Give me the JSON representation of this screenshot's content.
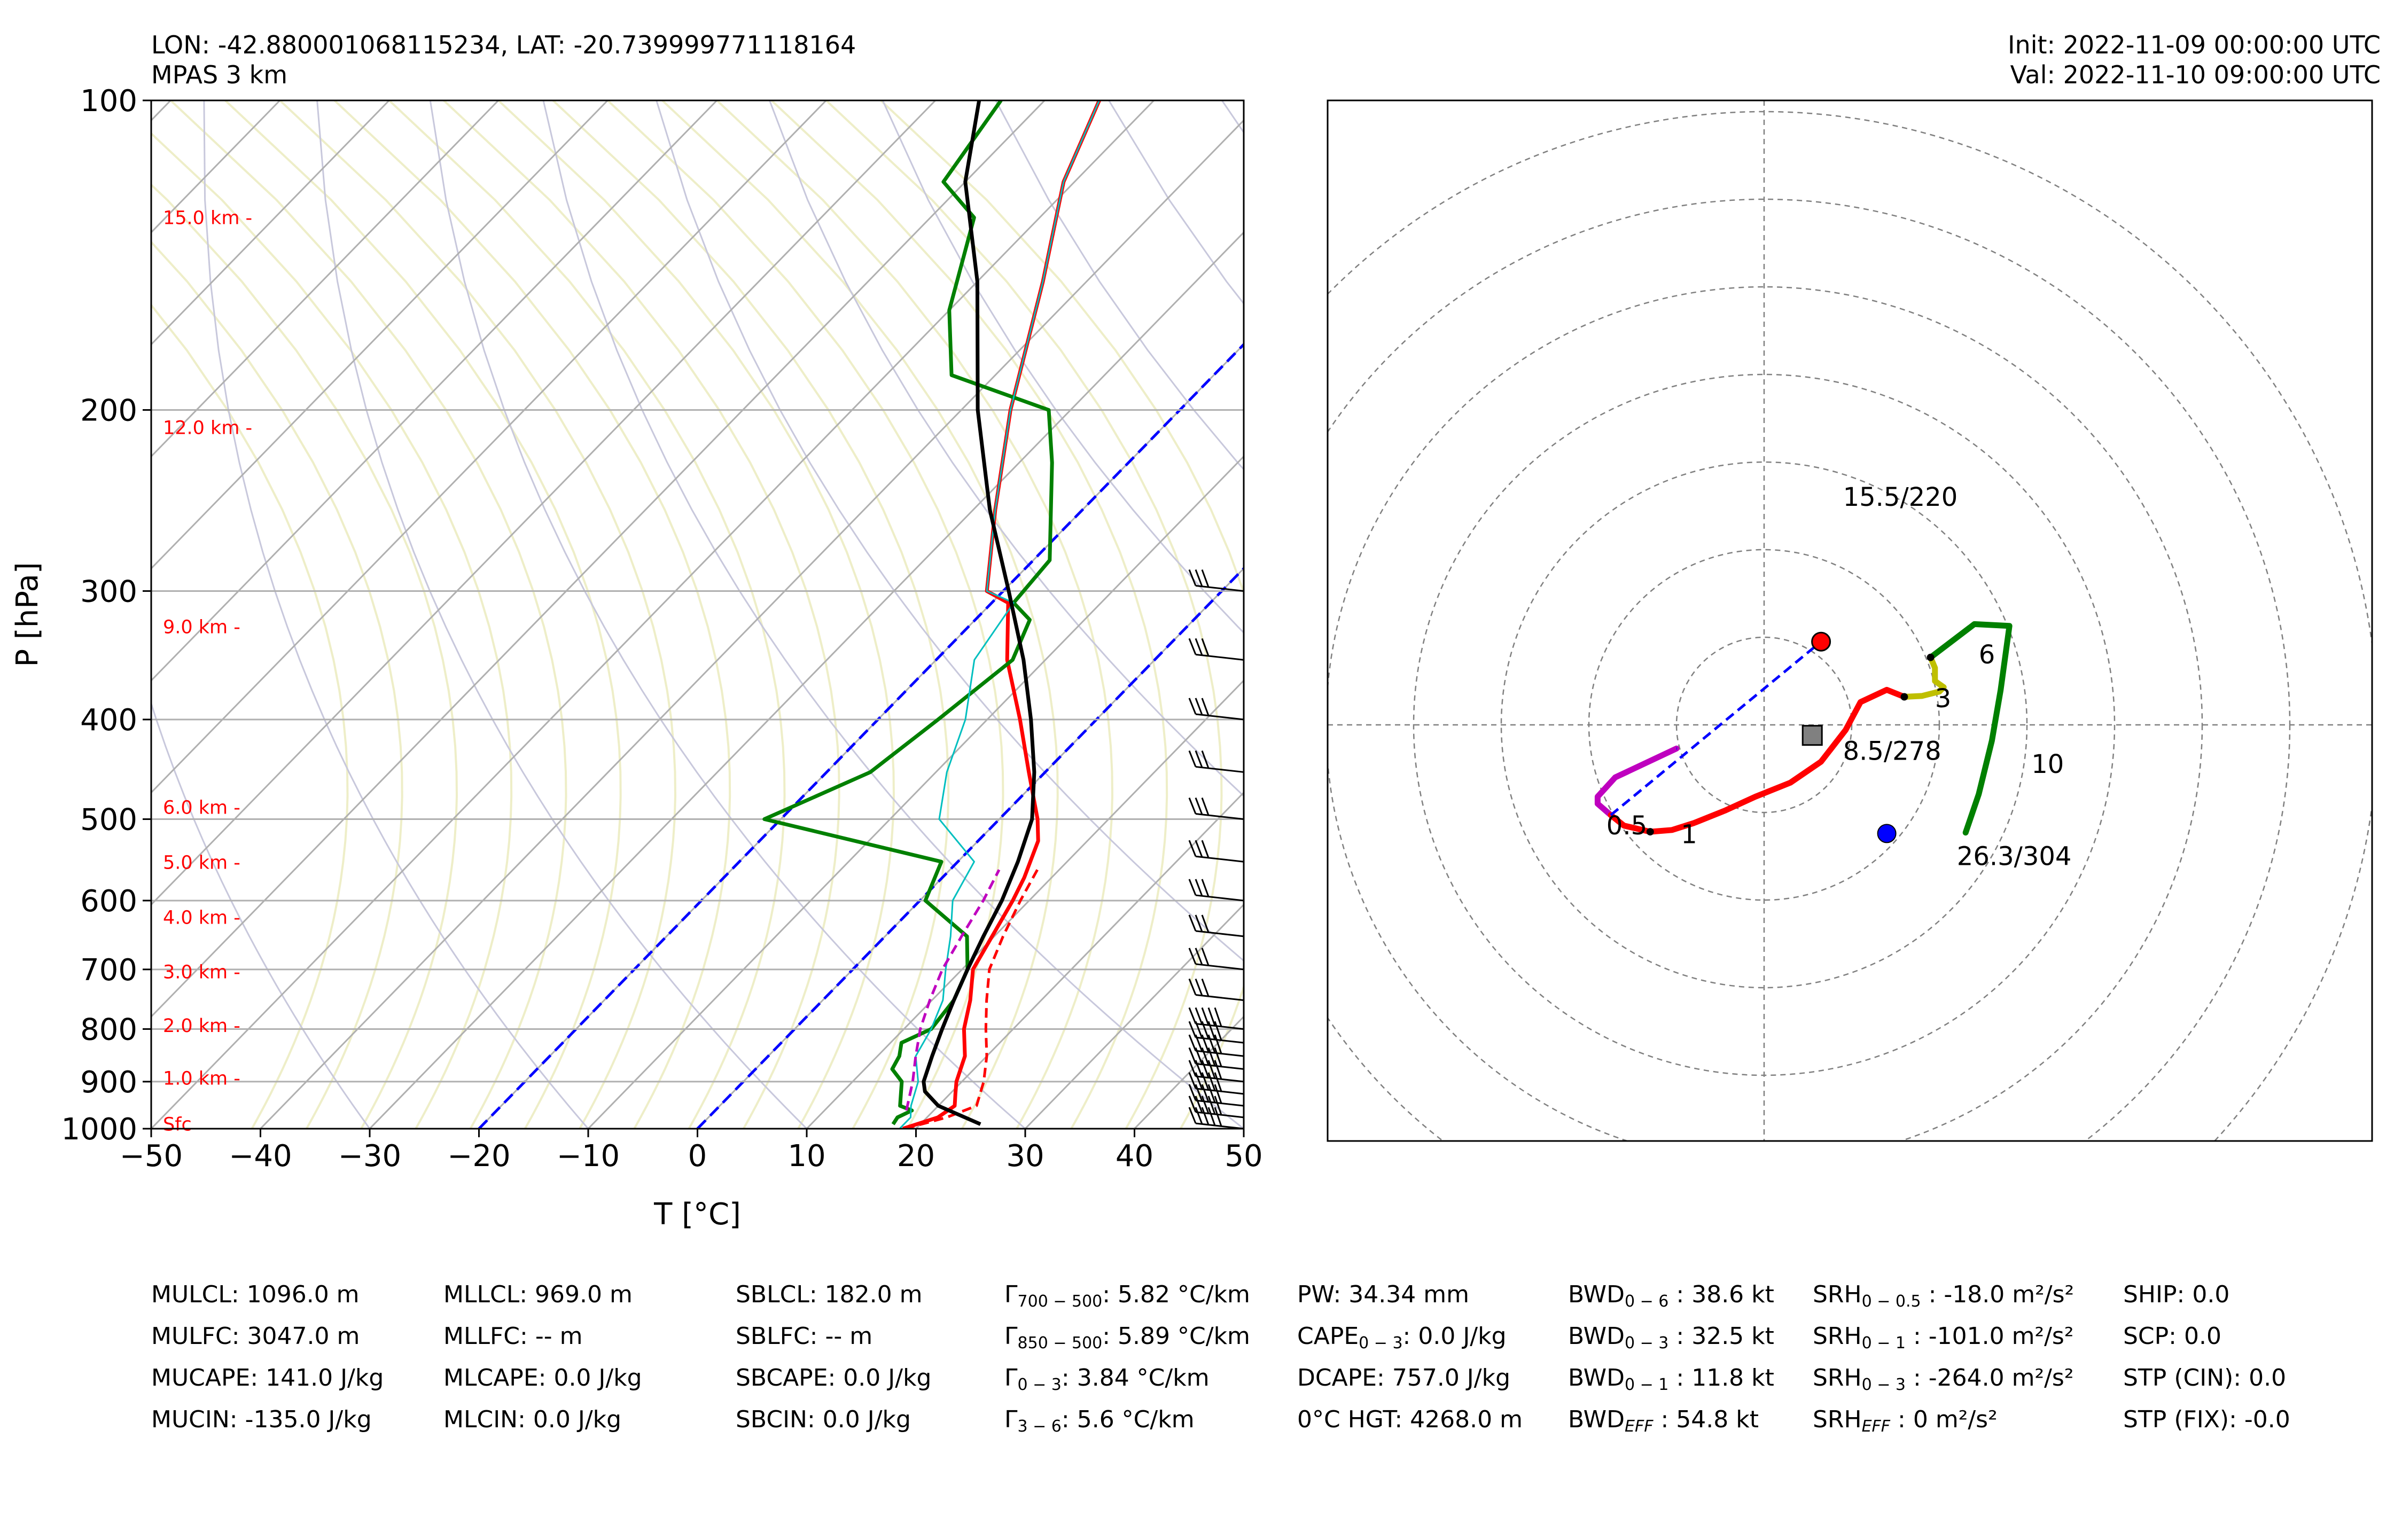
{
  "header": {
    "location": "LON: -42.880001068115234, LAT: -20.739999771118164",
    "model": "MPAS 3 km",
    "init": "Init: 2022-11-09 00:00:00 UTC",
    "valid": "Val: 2022-11-10 09:00:00 UTC"
  },
  "chart_data": [
    {
      "type": "skewt",
      "xlabel": "T [°C]",
      "ylabel": "P [hPa]",
      "xlim": [
        -50,
        50
      ],
      "ylim": [
        1000,
        100
      ],
      "x_ticks": [
        -50,
        -40,
        -30,
        -20,
        -10,
        0,
        10,
        20,
        30,
        40,
        50
      ],
      "x_tick_labels": [
        "−50",
        "−40",
        "−30",
        "−20",
        "−10",
        "0",
        "10",
        "20",
        "30",
        "40",
        "50"
      ],
      "p_ticks": [
        1000,
        900,
        800,
        700,
        600,
        500,
        400,
        300,
        200,
        100
      ],
      "height_labels": [
        {
          "label": "Sfc",
          "p": 990
        },
        {
          "label": "1.0 km -",
          "p": 893
        },
        {
          "label": "2.0 km -",
          "p": 794
        },
        {
          "label": "3.0 km -",
          "p": 704
        },
        {
          "label": "4.0 km -",
          "p": 623
        },
        {
          "label": "5.0 km -",
          "p": 551
        },
        {
          "label": "6.0 km -",
          "p": 487
        },
        {
          "label": "9.0 km -",
          "p": 325
        },
        {
          "label": "12.0 km -",
          "p": 208
        },
        {
          "label": "15.0 km -",
          "p": 130
        }
      ],
      "colors": {
        "temperature": "#ff0000",
        "dewpoint": "#008000",
        "parcel": "#000000",
        "wetbulb": "#00bfbf",
        "virtual_temp": "#ff0000",
        "dgz_parcel": "#bf00bf",
        "isotherm_0": "#0000ff",
        "dry_adiabat": "#c8c8dc",
        "moist_adiabat": "#eeeec8"
      },
      "series": [
        {
          "key": "temperature",
          "points": [
            [
              18.8,
              1000
            ],
            [
              21.0,
              975
            ],
            [
              21.5,
              950
            ],
            [
              20.5,
              925
            ],
            [
              19.5,
              900
            ],
            [
              18.0,
              850
            ],
            [
              15.5,
              800
            ],
            [
              13.5,
              750
            ],
            [
              11.0,
              700
            ],
            [
              9.8,
              650
            ],
            [
              8.5,
              600
            ],
            [
              7.5,
              570
            ],
            [
              5.5,
              525
            ],
            [
              3.5,
              500
            ],
            [
              -1.5,
              450
            ],
            [
              -7.0,
              400
            ],
            [
              -13.5,
              350
            ],
            [
              -18.5,
              308
            ],
            [
              -21.5,
              300
            ],
            [
              -28.0,
              250
            ],
            [
              -35.5,
              200
            ],
            [
              -44.0,
              150
            ],
            [
              -51.0,
              120
            ],
            [
              -55.0,
              100
            ]
          ]
        },
        {
          "key": "virtual_temp",
          "points": [
            [
              19.0,
              1000
            ],
            [
              21.8,
              975
            ],
            [
              23.5,
              950
            ],
            [
              22.0,
              900
            ],
            [
              20.0,
              850
            ],
            [
              17.5,
              800
            ],
            [
              15.0,
              750
            ],
            [
              12.5,
              700
            ],
            [
              10.8,
              650
            ],
            [
              9.2,
              600
            ],
            [
              8.0,
              560
            ]
          ]
        },
        {
          "key": "dewpoint",
          "points": [
            [
              17.5,
              990
            ],
            [
              17.3,
              975
            ],
            [
              18.0,
              960
            ],
            [
              16.5,
              950
            ],
            [
              14.5,
              900
            ],
            [
              12.5,
              875
            ],
            [
              12.0,
              850
            ],
            [
              11.0,
              825
            ],
            [
              12.5,
              800
            ],
            [
              12.0,
              750
            ],
            [
              10.5,
              700
            ],
            [
              7.5,
              650
            ],
            [
              0.5,
              600
            ],
            [
              -1.5,
              550
            ],
            [
              -21.5,
              500
            ],
            [
              -16.0,
              450
            ],
            [
              -14.5,
              400
            ],
            [
              -13.0,
              350
            ],
            [
              -15.0,
              320
            ],
            [
              -18.0,
              308
            ],
            [
              -18.5,
              280
            ],
            [
              -27.0,
              225
            ],
            [
              -32.0,
              200
            ],
            [
              -44.0,
              185
            ],
            [
              -50.0,
              160
            ],
            [
              -56.0,
              130
            ],
            [
              -62.0,
              120
            ],
            [
              -64.0,
              100
            ]
          ]
        },
        {
          "key": "wetbulb",
          "points": [
            [
              18.5,
              1000
            ],
            [
              18.5,
              975
            ],
            [
              17.5,
              950
            ],
            [
              16.0,
              900
            ],
            [
              13.5,
              850
            ],
            [
              12.5,
              800
            ],
            [
              11.0,
              750
            ],
            [
              8.5,
              700
            ],
            [
              6.0,
              650
            ],
            [
              3.0,
              600
            ],
            [
              1.5,
              550
            ],
            [
              -5.5,
              500
            ],
            [
              -9.0,
              450
            ],
            [
              -12.0,
              400
            ],
            [
              -16.5,
              350
            ],
            [
              -18.0,
              308
            ],
            [
              -21.5,
              300
            ],
            [
              -28.0,
              250
            ],
            [
              -35.5,
              200
            ],
            [
              -44.0,
              150
            ],
            [
              -51.0,
              120
            ],
            [
              -55.0,
              100
            ]
          ]
        },
        {
          "key": "dgz_parcel",
          "points": [
            [
              17.5,
              960
            ],
            [
              15.5,
              900
            ],
            [
              13.5,
              850
            ],
            [
              11.5,
              800
            ],
            [
              9.8,
              750
            ],
            [
              8.2,
              700
            ],
            [
              7.0,
              650
            ],
            [
              5.8,
              600
            ],
            [
              4.5,
              560
            ]
          ]
        },
        {
          "key": "parcel",
          "points": [
            [
              25.5,
              990
            ],
            [
              20.0,
              950
            ],
            [
              17.5,
              920
            ],
            [
              16.5,
              900
            ],
            [
              15.0,
              850
            ],
            [
              13.5,
              800
            ],
            [
              12.0,
              750
            ],
            [
              10.5,
              700
            ],
            [
              9.0,
              650
            ],
            [
              7.5,
              600
            ],
            [
              5.5,
              550
            ],
            [
              3.0,
              500
            ],
            [
              -1.0,
              450
            ],
            [
              -6.0,
              400
            ],
            [
              -12.0,
              350
            ],
            [
              -19.5,
              300
            ],
            [
              -28.5,
              250
            ],
            [
              -38.5,
              200
            ],
            [
              -50.0,
              150
            ],
            [
              -60.0,
              120
            ],
            [
              -66.0,
              100
            ]
          ]
        }
      ],
      "isotherm_0_lines": [
        {
          "t": 0,
          "p_range": [
            1000,
            100
          ]
        },
        {
          "t": -20,
          "p_range": [
            1000,
            100
          ]
        }
      ],
      "wind_barbs_p": [
        1000,
        975,
        950,
        925,
        900,
        875,
        850,
        825,
        800,
        750,
        700,
        650,
        600,
        550,
        500,
        450,
        400,
        350,
        300
      ]
    },
    {
      "type": "hodograph",
      "center_labels": [
        {
          "text": "15.5/220",
          "u": 0.9,
          "v": 2.5
        },
        {
          "text": "8.5/278",
          "u": 0.9,
          "v": -0.4
        },
        {
          "text": "26.3/304",
          "u": 2.2,
          "v": -1.6
        }
      ],
      "height_labels": [
        {
          "text": "0.5",
          "u": -1.8,
          "v": -1.25
        },
        {
          "text": "1",
          "u": -0.95,
          "v": -1.35
        },
        {
          "text": "3",
          "u": 1.95,
          "v": 0.2
        },
        {
          "text": "6",
          "u": 2.45,
          "v": 0.7
        },
        {
          "text": "10",
          "u": 3.05,
          "v": -0.55
        }
      ],
      "colors": {
        "0-0.5km": "#bf00bf",
        "0.5-3km": "#ff0000",
        "3-6km": "#bfbf00",
        "6-10km": "#008000",
        "storm_motion_right": "#ff0000",
        "storm_motion_left": "#0000ff",
        "mean_wind": "#808080",
        "shear_line": "#0000ff"
      },
      "series": [
        {
          "name": "0-0.5 km",
          "points": [
            [
              -1.0,
              -0.27
            ],
            [
              -1.7,
              -0.6
            ],
            [
              -1.9,
              -0.82
            ],
            [
              -1.9,
              -0.9
            ],
            [
              -1.75,
              -1.03
            ]
          ]
        },
        {
          "name": "0.5-3 km",
          "points": [
            [
              -1.75,
              -1.03
            ],
            [
              -1.6,
              -1.15
            ],
            [
              -1.3,
              -1.22
            ],
            [
              -1.05,
              -1.2
            ],
            [
              -0.8,
              -1.12
            ],
            [
              -0.45,
              -0.98
            ],
            [
              -0.1,
              -0.82
            ],
            [
              0.3,
              -0.66
            ],
            [
              0.65,
              -0.42
            ],
            [
              0.93,
              -0.06
            ],
            [
              1.1,
              0.26
            ],
            [
              1.4,
              0.4
            ],
            [
              1.6,
              0.32
            ]
          ]
        },
        {
          "name": "3-6 km",
          "points": [
            [
              1.6,
              0.32
            ],
            [
              1.8,
              0.33
            ],
            [
              2.0,
              0.38
            ],
            [
              2.05,
              0.43
            ],
            [
              1.95,
              0.5
            ],
            [
              1.95,
              0.65
            ],
            [
              1.9,
              0.77
            ]
          ]
        },
        {
          "name": "6-10 km",
          "points": [
            [
              1.9,
              0.77
            ],
            [
              2.4,
              1.15
            ],
            [
              2.8,
              1.13
            ],
            [
              2.7,
              0.4
            ],
            [
              2.6,
              -0.18
            ],
            [
              2.45,
              -0.79
            ],
            [
              2.3,
              -1.23
            ]
          ]
        }
      ],
      "markers": [
        {
          "name": "right-mover",
          "u": 0.65,
          "v": 0.95
        },
        {
          "name": "mean-wind",
          "u": 0.55,
          "v": -0.12
        },
        {
          "name": "left-mover",
          "u": 1.4,
          "v": -1.24
        }
      ],
      "rings": 7
    }
  ],
  "params": {
    "col1": [
      "MULCL: 1096.0 m",
      "MULFC: 3047.0 m",
      "MUCAPE: 141.0 J/kg",
      "MUCIN: -135.0 J/kg"
    ],
    "col2": [
      "MLLCL: 969.0 m",
      "MLLFC: -- m",
      "MLCAPE: 0.0 J/kg",
      "MLCIN: 0.0 J/kg"
    ],
    "col3": [
      "SBLCL: 182.0 m",
      "SBLFC: -- m",
      "SBCAPE: 0.0 J/kg",
      "SBCIN: 0.0 J/kg"
    ],
    "col4": [
      {
        "base": "Γ",
        "sub": "700 − 500",
        "val": ": 5.82 °C/km"
      },
      {
        "base": "Γ",
        "sub": "850 − 500",
        "val": ": 5.89 °C/km"
      },
      {
        "base": "Γ",
        "sub": "0 − 3",
        "val": ": 3.84 °C/km"
      },
      {
        "base": "Γ",
        "sub": "3 − 6",
        "val": ": 5.6 °C/km"
      }
    ],
    "col5": [
      {
        "base": "PW",
        "sub": "",
        "val": ": 34.34 mm"
      },
      {
        "base": "CAPE",
        "sub": "0 − 3",
        "val": ": 0.0 J/kg"
      },
      {
        "base": "DCAPE",
        "sub": "",
        "val": ": 757.0 J/kg"
      },
      {
        "base": "0°C HGT",
        "sub": "",
        "val": ": 4268.0 m"
      }
    ],
    "col6": [
      {
        "base": "BWD",
        "sub": "0 − 6",
        "val": " : 38.6 kt"
      },
      {
        "base": "BWD",
        "sub": "0 − 3",
        "val": " : 32.5 kt"
      },
      {
        "base": "BWD",
        "sub": "0 − 1",
        "val": " : 11.8 kt"
      },
      {
        "base": "BWD",
        "sub": "EFF",
        "val": " : 54.8 kt"
      }
    ],
    "col7": [
      {
        "base": "SRH",
        "sub": "0 − 0.5",
        "val": " : -18.0 m²/s²"
      },
      {
        "base": "SRH",
        "sub": "0 − 1",
        "val": " : -101.0 m²/s²"
      },
      {
        "base": "SRH",
        "sub": "0 − 3",
        "val": " : -264.0 m²/s²"
      },
      {
        "base": "SRH",
        "sub": "EFF",
        "val": " : 0 m²/s²"
      }
    ],
    "col8": [
      "SHIP: 0.0",
      "SCP: 0.0",
      "STP (CIN): 0.0",
      "STP (FIX): -0.0"
    ]
  }
}
